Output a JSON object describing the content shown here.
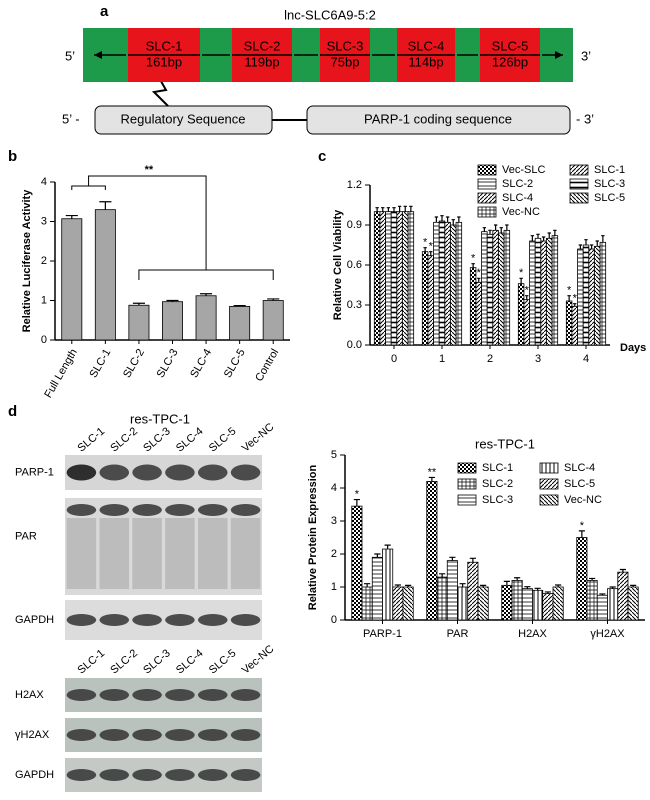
{
  "panel_labels": [
    "a",
    "b",
    "c",
    "d"
  ],
  "schematic": {
    "title": "lnc-SLC6A9-5:2",
    "five_prime": "5’",
    "three_prime": "3’",
    "segments": [
      {
        "name": "SLC-1",
        "length": "161bp"
      },
      {
        "name": "SLC-2",
        "length": "119bp"
      },
      {
        "name": "SLC-3",
        "length": "75bp"
      },
      {
        "name": "SLC-4",
        "length": "114bp"
      },
      {
        "name": "SLC-5",
        "length": "126bp"
      }
    ],
    "gene_five_prime": "5’ -",
    "gene_three_prime": "- 3’",
    "regulatory": "Regulatory Sequence",
    "coding": "PARP-1 coding sequence"
  },
  "blots": {
    "title": "res-TPC-1",
    "lanes": [
      "SLC-1",
      "SLC-2",
      "SLC-3",
      "SLC-4",
      "SLC-5",
      "Vec-NC"
    ],
    "rows": [
      "PARP-1",
      "PAR",
      "GAPDH",
      "H2AX",
      "γH2AX",
      "GAPDH"
    ]
  },
  "chart_data": [
    {
      "type": "bar",
      "ylabel": "Relative Luciferase Activity",
      "categories": [
        "Full Length",
        "SLC-1",
        "SLC-2",
        "SLC-3",
        "SLC-4",
        "SLC-5",
        "Control"
      ],
      "values": [
        3.07,
        3.3,
        0.88,
        0.97,
        1.12,
        0.85,
        1.0
      ],
      "errors": [
        0.08,
        0.2,
        0.05,
        0.03,
        0.05,
        0.02,
        0.04
      ],
      "color": "#a6a6a6",
      "ylim": [
        0,
        4
      ],
      "yticks": [
        0,
        1,
        2,
        3,
        4
      ],
      "annotation": "**"
    },
    {
      "type": "bar",
      "ylabel": "Relative Cell Viability",
      "xlabel": "Days",
      "categories": [
        "0",
        "1",
        "2",
        "3",
        "4"
      ],
      "ylim": [
        0,
        1.2
      ],
      "yticks": [
        {
          "value": 0,
          "label": "0.0"
        },
        0.3,
        0.6,
        0.9,
        1.2
      ],
      "legend": {
        "ncol": 2,
        "fill": "row"
      },
      "series": [
        {
          "name": "Vec-SLC",
          "pattern": "check",
          "values": [
            1.0,
            0.7,
            0.58,
            0.46,
            0.33
          ],
          "errors": [
            0.03,
            0.03,
            0.03,
            0.04,
            0.04
          ]
        },
        {
          "name": "SLC-1",
          "pattern": "diag",
          "values": [
            1.0,
            0.67,
            0.47,
            0.34,
            0.29
          ],
          "errors": [
            0.03,
            0.03,
            0.03,
            0.03,
            0.02
          ]
        },
        {
          "name": "SLC-2",
          "pattern": "hlines",
          "values": [
            1.0,
            0.92,
            0.85,
            0.78,
            0.72
          ],
          "errors": [
            0.03,
            0.04,
            0.03,
            0.04,
            0.03
          ]
        },
        {
          "name": "SLC-3",
          "pattern": "hbold",
          "values": [
            1.0,
            0.93,
            0.83,
            0.8,
            0.75
          ],
          "errors": [
            0.03,
            0.04,
            0.03,
            0.03,
            0.04
          ]
        },
        {
          "name": "SLC-4",
          "pattern": "diag",
          "values": [
            1.0,
            0.92,
            0.86,
            0.78,
            0.72
          ],
          "errors": [
            0.04,
            0.04,
            0.04,
            0.03,
            0.03
          ]
        },
        {
          "name": "SLC-5",
          "pattern": "diag2",
          "values": [
            1.0,
            0.9,
            0.84,
            0.8,
            0.74
          ],
          "errors": [
            0.04,
            0.04,
            0.04,
            0.04,
            0.04
          ]
        },
        {
          "name": "Vec-NC",
          "pattern": "grid",
          "values": [
            1.0,
            0.92,
            0.86,
            0.82,
            0.77
          ],
          "errors": [
            0.04,
            0.04,
            0.04,
            0.04,
            0.05
          ]
        }
      ],
      "annotations": [
        {
          "text": "*",
          "category": "1",
          "series": "Vec-SLC"
        },
        {
          "text": "*",
          "category": "1",
          "series": "SLC-1"
        },
        {
          "text": "*",
          "category": "2",
          "series": "Vec-SLC"
        },
        {
          "text": "*",
          "category": "2",
          "series": "SLC-1"
        },
        {
          "text": "*",
          "category": "3",
          "series": "Vec-SLC"
        },
        {
          "text": "*",
          "category": "3",
          "series": "SLC-1"
        },
        {
          "text": "*",
          "category": "4",
          "series": "Vec-SLC"
        },
        {
          "text": "*",
          "category": "4",
          "series": "SLC-1"
        }
      ]
    },
    {
      "type": "bar",
      "title": "res-TPC-1",
      "ylabel": "Relative Protein Expression",
      "categories": [
        "PARP-1",
        "PAR",
        "H2AX",
        "γH2AX"
      ],
      "ylim": [
        0,
        5
      ],
      "yticks": [
        0,
        1,
        2,
        3,
        4,
        5
      ],
      "legend": {
        "ncol": 2,
        "fill": "column"
      },
      "series": [
        {
          "name": "SLC-1",
          "pattern": "check",
          "values": [
            3.45,
            4.2,
            1.05,
            2.5
          ],
          "errors": [
            0.2,
            0.12,
            0.12,
            0.2
          ]
        },
        {
          "name": "SLC-2",
          "pattern": "grid",
          "values": [
            1.0,
            1.3,
            1.2,
            1.2
          ],
          "errors": [
            0.1,
            0.1,
            0.08,
            0.06
          ]
        },
        {
          "name": "SLC-3",
          "pattern": "hlines",
          "values": [
            1.9,
            1.8,
            0.95,
            0.75
          ],
          "errors": [
            0.1,
            0.1,
            0.06,
            0.04
          ]
        },
        {
          "name": "SLC-4",
          "pattern": "vlines",
          "values": [
            2.15,
            1.0,
            0.9,
            0.95
          ],
          "errors": [
            0.12,
            0.1,
            0.06,
            0.05
          ]
        },
        {
          "name": "SLC-5",
          "pattern": "diag",
          "values": [
            1.0,
            1.75,
            0.8,
            1.45
          ],
          "errors": [
            0.06,
            0.12,
            0.05,
            0.08
          ]
        },
        {
          "name": "Vec-NC",
          "pattern": "diag2",
          "values": [
            1.0,
            1.0,
            1.0,
            1.0
          ],
          "errors": [
            0.05,
            0.05,
            0.06,
            0.05
          ]
        }
      ],
      "annotations": [
        {
          "text": "*",
          "category": "PARP-1",
          "series": "SLC-1"
        },
        {
          "text": "**",
          "category": "PAR",
          "series": "SLC-1"
        },
        {
          "text": "*",
          "category": "γH2AX",
          "series": "SLC-1"
        }
      ]
    }
  ]
}
